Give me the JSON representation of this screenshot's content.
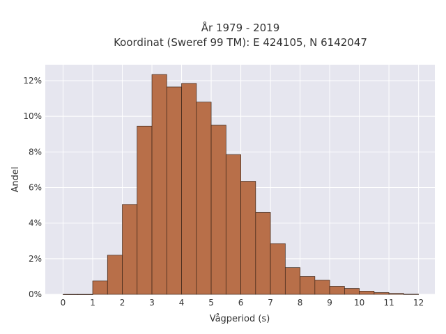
{
  "chart_data": {
    "type": "bar",
    "title_lines": [
      "År 1979 - 2019",
      "Koordinat (Sweref 99 TM): E 424105, N 6142047"
    ],
    "xlabel": "Vågperiod (s)",
    "ylabel": "Andel",
    "bin_width": 0.5,
    "bin_starts": [
      0,
      0.5,
      1,
      1.5,
      2,
      2.5,
      3,
      3.5,
      4,
      4.5,
      5,
      5.5,
      6,
      6.5,
      7,
      7.5,
      8,
      8.5,
      9,
      9.5,
      10,
      10.5,
      11,
      11.5
    ],
    "values": [
      0.0,
      0.0,
      0.75,
      2.2,
      5.05,
      9.45,
      12.35,
      11.65,
      11.85,
      10.8,
      9.5,
      7.85,
      6.35,
      4.6,
      2.85,
      1.5,
      1.0,
      0.8,
      0.45,
      0.33,
      0.18,
      0.1,
      0.05,
      0.01
    ],
    "x_ticks": [
      0,
      1,
      2,
      3,
      4,
      5,
      6,
      7,
      8,
      9,
      10,
      11,
      12
    ],
    "y_ticks": [
      0,
      2,
      4,
      6,
      8,
      10,
      12
    ],
    "y_tick_labels": [
      "0%",
      "2%",
      "4%",
      "6%",
      "8%",
      "10%",
      "12%"
    ],
    "xlim": [
      -0.6,
      12.55
    ],
    "ylim": [
      0,
      12.9
    ],
    "grid": true,
    "bar_color": "#b86f49",
    "bar_edge_color": "#3a2418",
    "background_color": "#e6e6ef",
    "grid_color": "#ffffff"
  }
}
